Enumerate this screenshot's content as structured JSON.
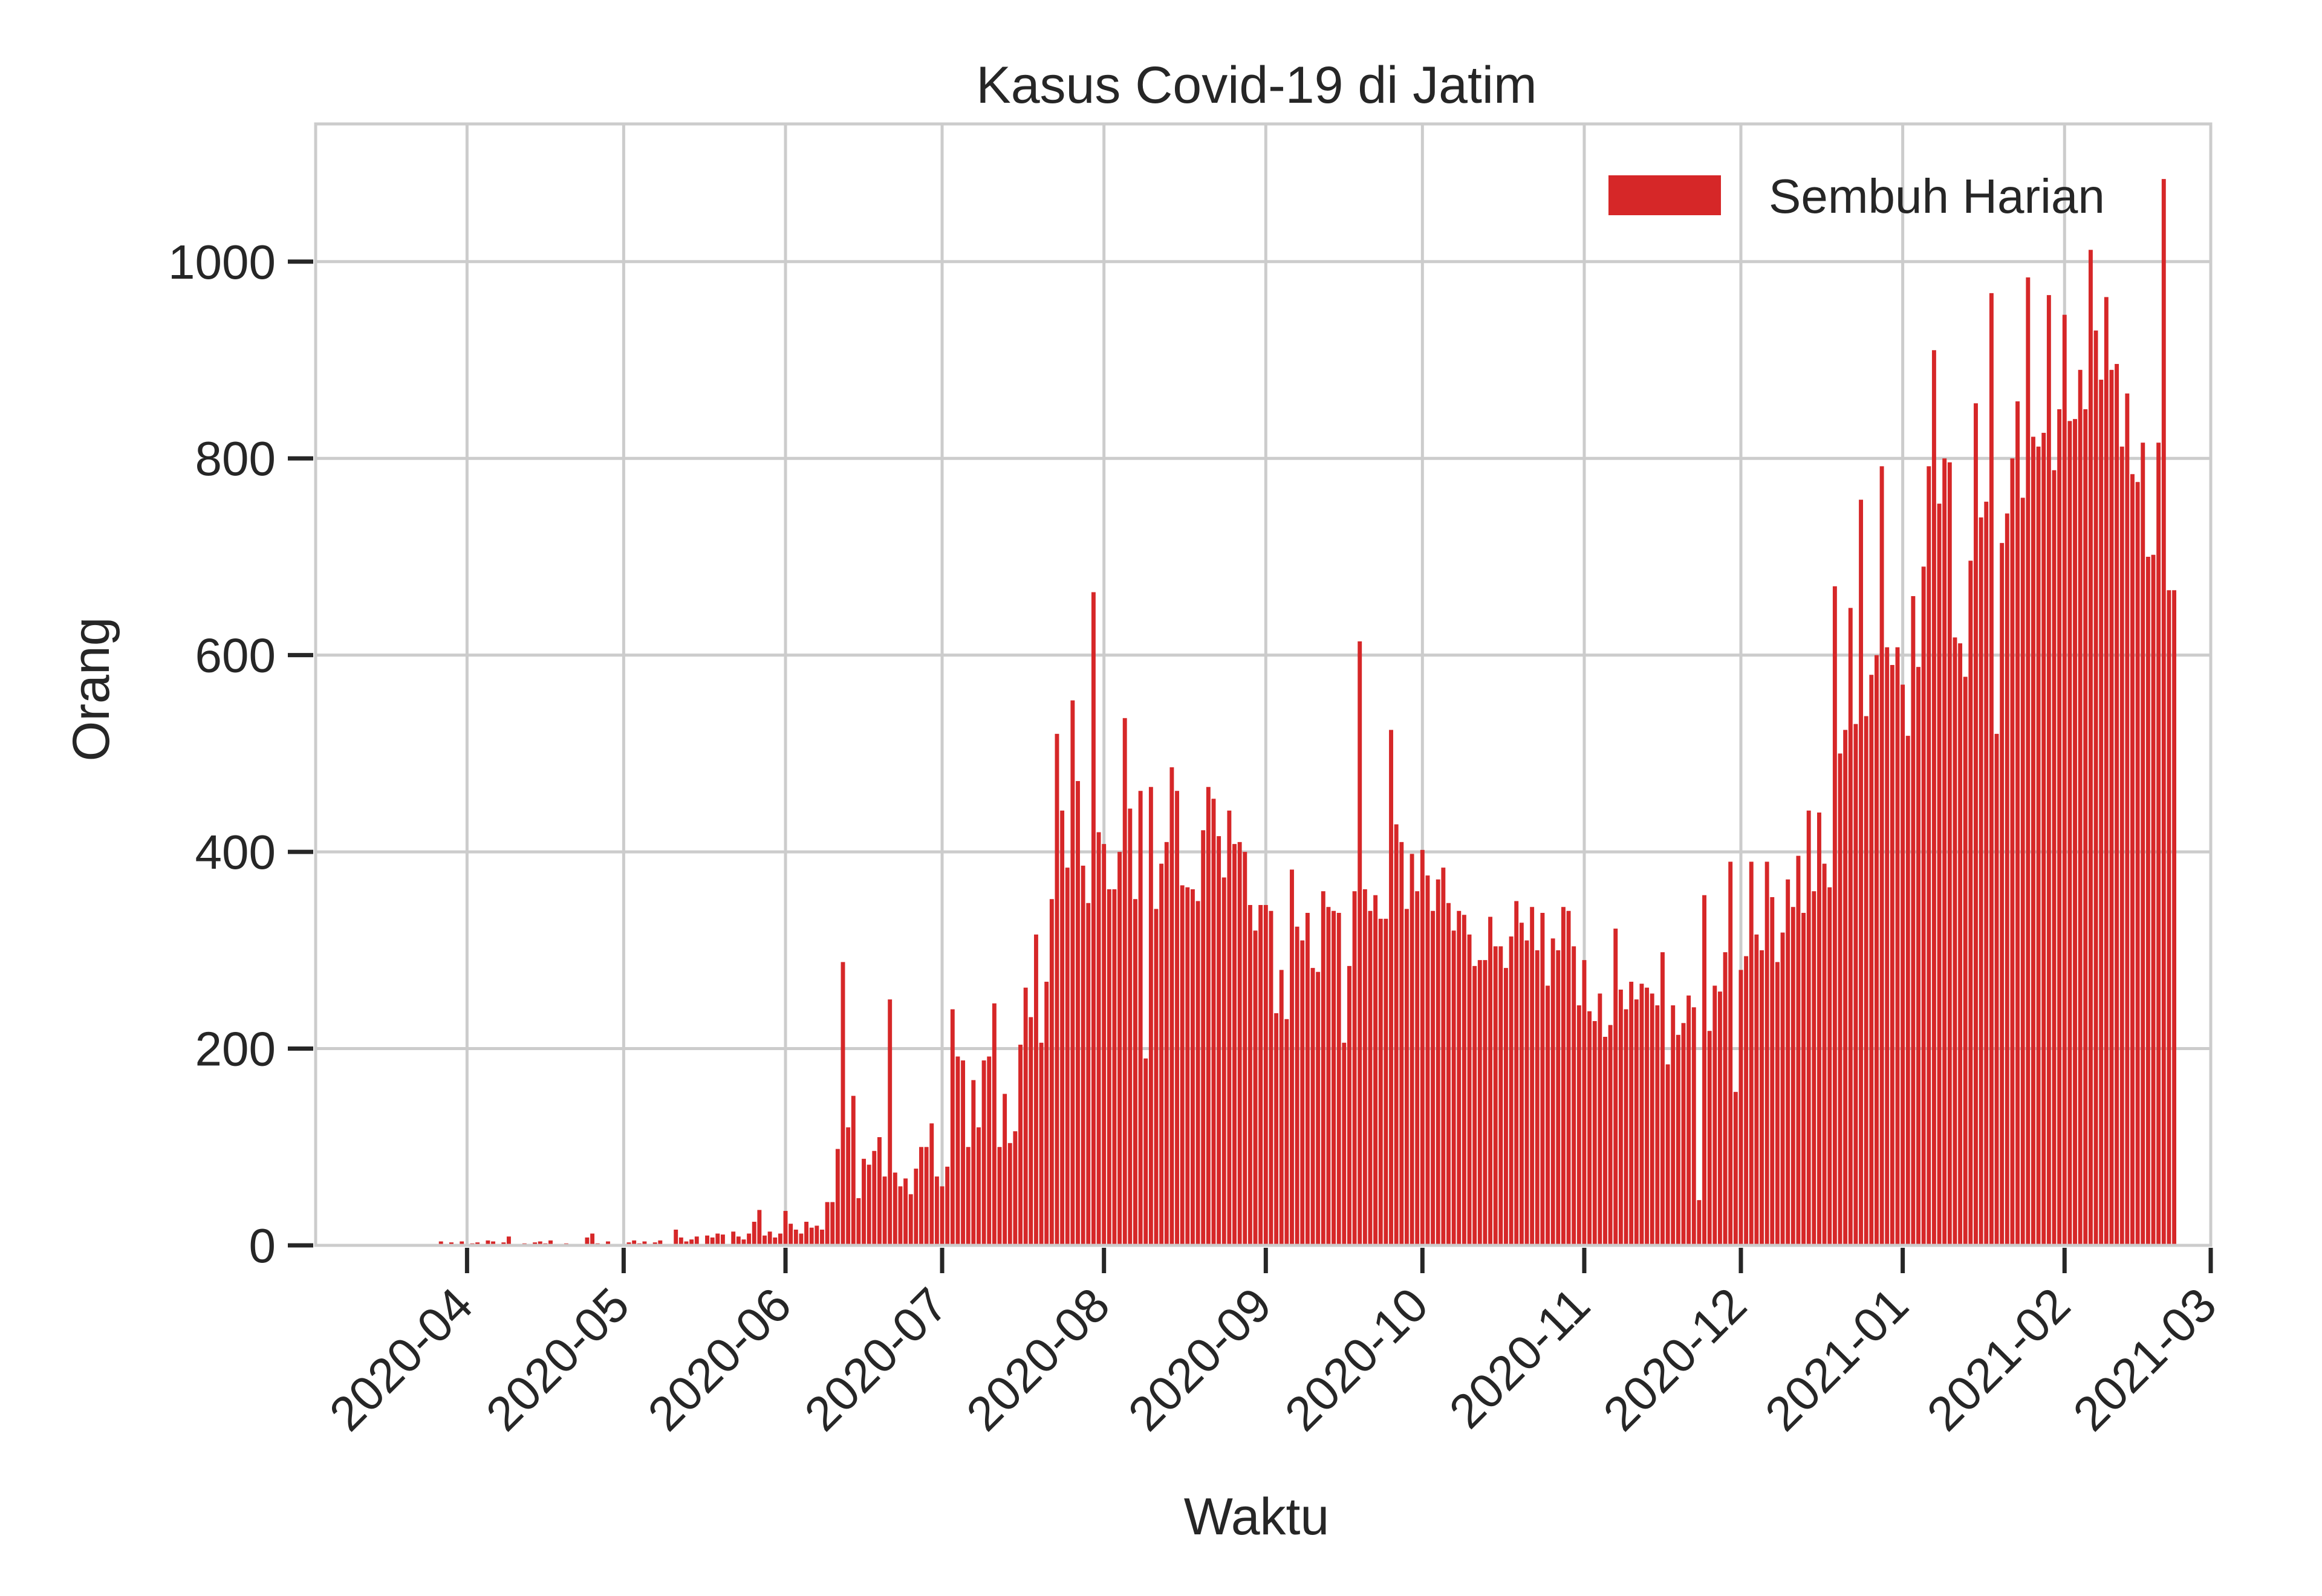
{
  "chart_data": {
    "type": "bar",
    "title": "Kasus Covid-19 di Jatim",
    "xlabel": "Waktu",
    "ylabel": "Orang",
    "ylim": [
      0,
      1140
    ],
    "yticks": [
      0,
      200,
      400,
      600,
      800,
      1000
    ],
    "xlim": [
      "2020-03-03",
      "2021-03-01"
    ],
    "xticks": [
      "2020-04-01",
      "2020-05-01",
      "2020-06-01",
      "2020-07-01",
      "2020-08-01",
      "2020-09-01",
      "2020-10-01",
      "2020-11-01",
      "2020-12-01",
      "2021-01-01",
      "2021-02-01",
      "2021-03-01"
    ],
    "xtick_labels": [
      "2020-04",
      "2020-05",
      "2020-06",
      "2020-07",
      "2020-08",
      "2020-09",
      "2020-10",
      "2020-11",
      "2020-12",
      "2021-01",
      "2021-02",
      "2021-03"
    ],
    "grid": true,
    "legend_position": "top-right",
    "series": [
      {
        "name": "Sembuh Harian",
        "color": "#d62728",
        "start_date": "2020-03-27",
        "values": [
          4,
          0,
          3,
          0,
          4,
          0,
          2,
          3,
          0,
          5,
          4,
          0,
          3,
          9,
          0,
          1,
          2,
          0,
          3,
          4,
          2,
          5,
          0,
          0,
          2,
          0,
          0,
          0,
          8,
          12,
          2,
          0,
          4,
          0,
          1,
          0,
          3,
          5,
          2,
          4,
          0,
          3,
          5,
          0,
          0,
          16,
          8,
          4,
          6,
          9,
          0,
          10,
          8,
          12,
          11,
          0,
          14,
          9,
          6,
          12,
          24,
          36,
          10,
          14,
          8,
          12,
          35,
          22,
          16,
          12,
          24,
          18,
          20,
          16,
          44,
          44,
          98,
          288,
          120,
          152,
          48,
          88,
          82,
          96,
          110,
          70,
          250,
          74,
          60,
          68,
          52,
          78,
          100,
          100,
          124,
          70,
          60,
          80,
          240,
          192,
          188,
          100,
          168,
          120,
          188,
          192,
          246,
          100,
          154,
          104,
          116,
          204,
          262,
          232,
          316,
          206,
          268,
          352,
          520,
          442,
          384,
          554,
          472,
          386,
          348,
          664,
          420,
          408,
          362,
          362,
          400,
          536,
          444,
          352,
          462,
          190,
          466,
          342,
          388,
          410,
          486,
          462,
          366,
          364,
          362,
          350,
          422,
          466,
          454,
          416,
          374,
          442,
          408,
          410,
          400,
          346,
          320,
          346,
          346,
          340,
          236,
          280,
          230,
          382,
          324,
          310,
          338,
          282,
          278,
          360,
          344,
          340,
          338,
          206,
          284,
          360,
          614,
          362,
          340,
          356,
          332,
          332,
          524,
          428,
          410,
          342,
          398,
          360,
          402,
          376,
          340,
          372,
          384,
          348,
          320,
          340,
          336,
          316,
          284,
          290,
          290,
          334,
          304,
          304,
          282,
          314,
          350,
          328,
          310,
          344,
          300,
          338,
          264,
          312,
          300,
          344,
          340,
          304,
          244,
          290,
          238,
          228,
          256,
          212,
          224,
          322,
          260,
          240,
          268,
          250,
          266,
          262,
          256,
          244,
          298,
          184,
          244,
          214,
          226,
          254,
          242,
          46,
          356,
          218,
          264,
          258,
          298,
          390,
          156,
          280,
          294,
          390,
          316,
          300,
          390,
          354,
          288,
          318,
          372,
          344,
          396,
          338,
          442,
          360,
          440,
          388,
          364,
          670,
          500,
          524,
          648,
          530,
          758,
          538,
          580,
          600,
          792,
          608,
          590,
          608,
          570,
          518,
          660,
          588,
          690,
          792,
          910,
          754,
          800,
          796,
          618,
          612,
          578,
          696,
          856,
          740,
          756,
          968,
          520,
          714,
          744,
          800,
          858,
          760,
          984,
          822,
          812,
          826,
          966,
          788,
          850,
          946,
          838,
          840,
          890,
          850,
          1012,
          930,
          880,
          964,
          890,
          896,
          812,
          866,
          784,
          776,
          816,
          700,
          702,
          816,
          1084,
          666,
          666
        ]
      }
    ]
  }
}
